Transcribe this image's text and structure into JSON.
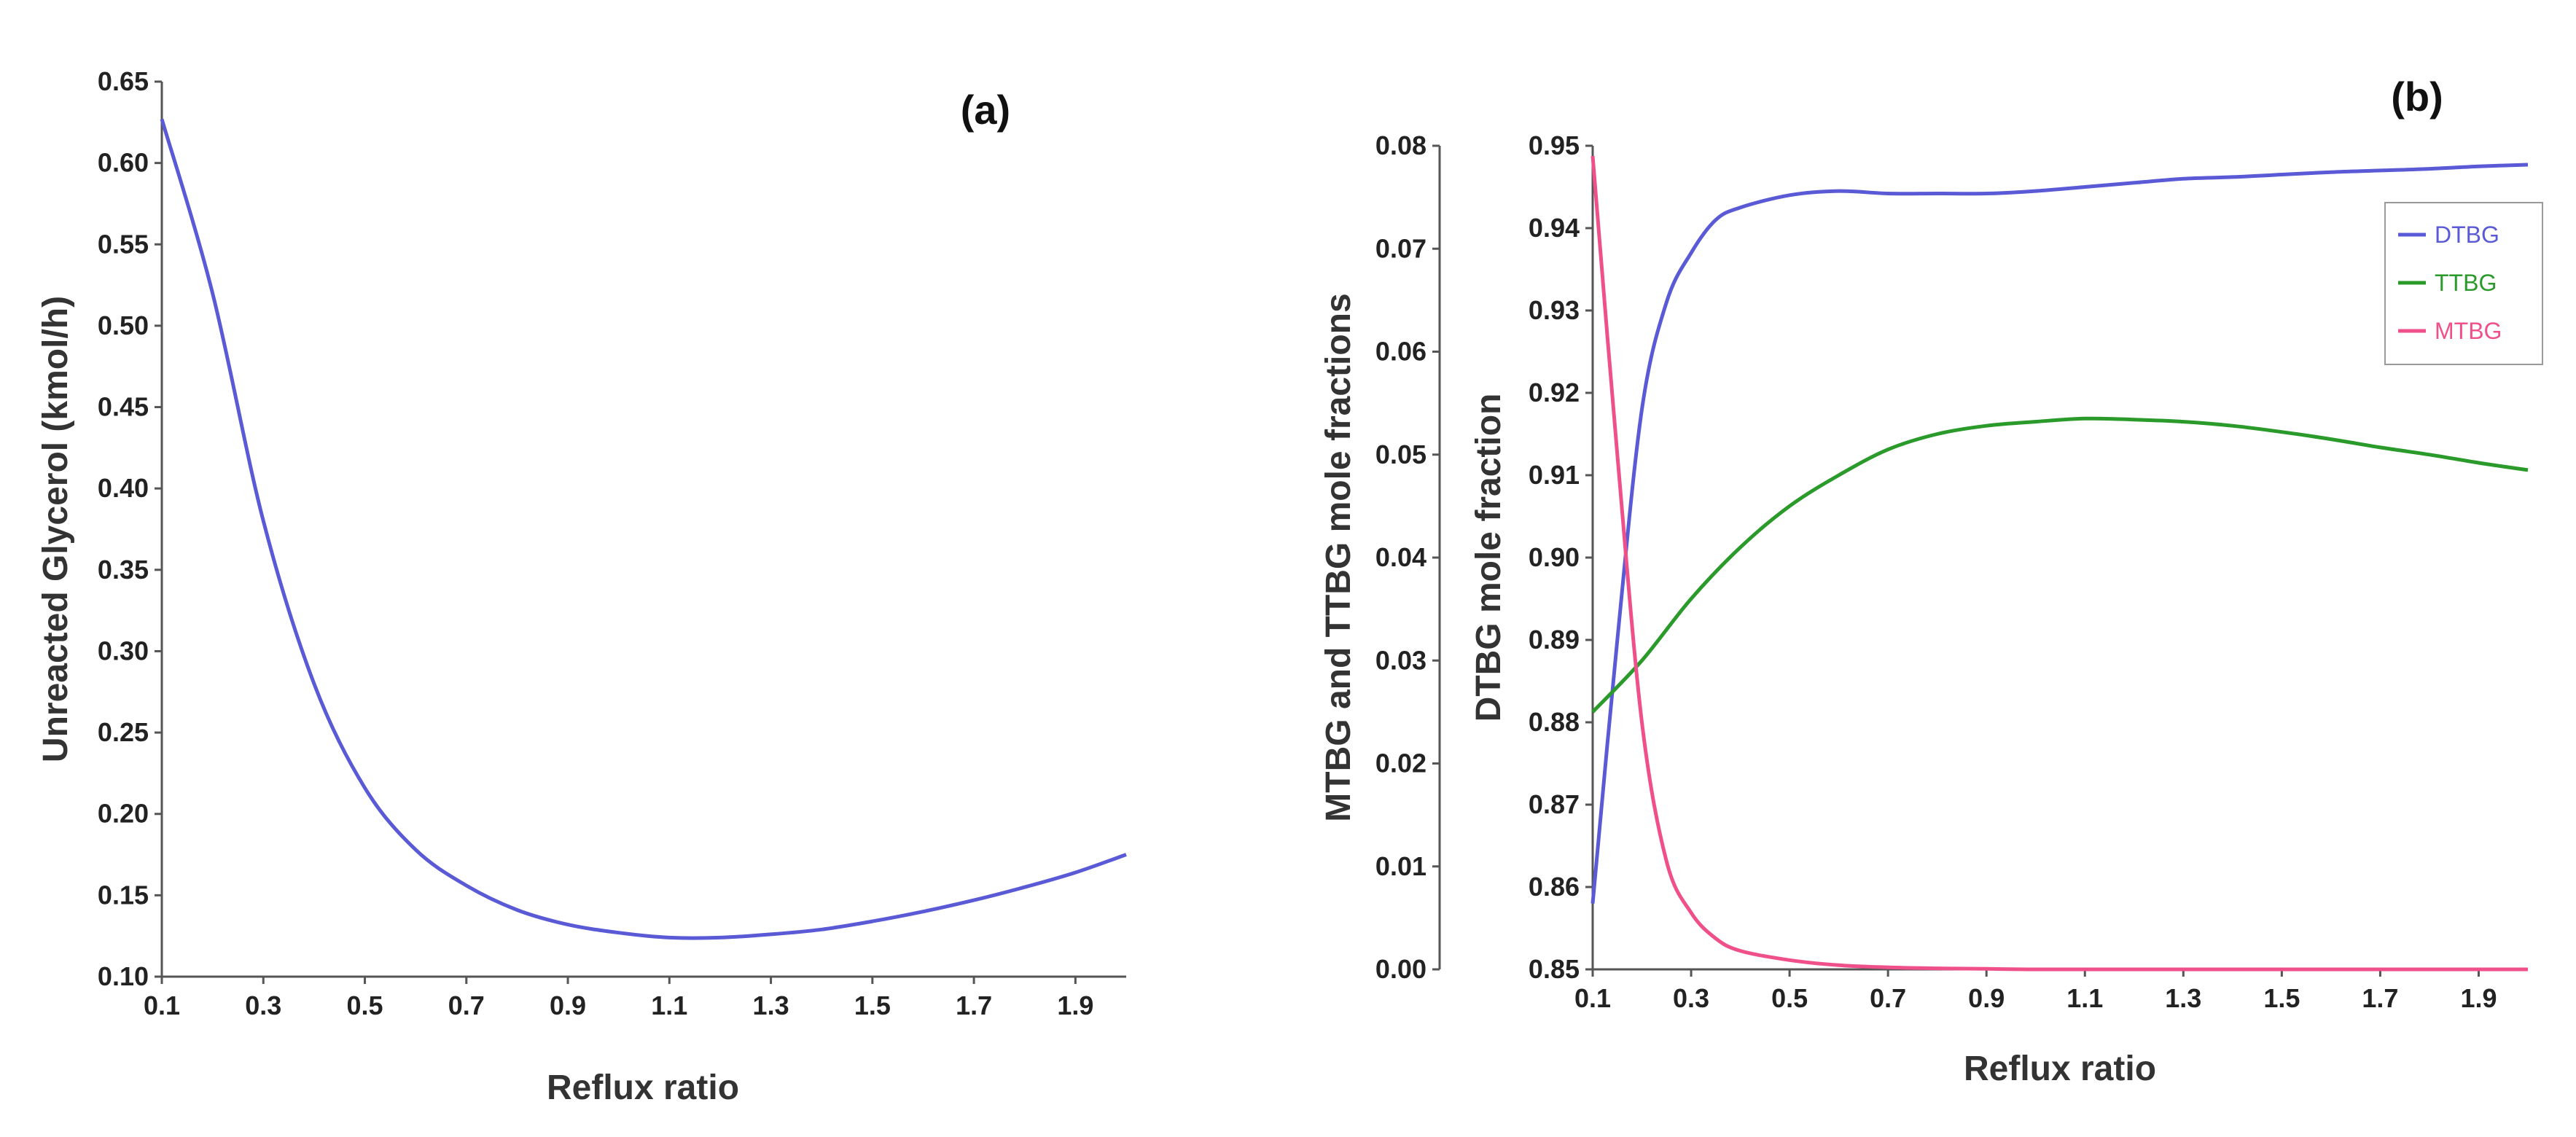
{
  "chart_data": [
    {
      "panel": "(a)",
      "type": "line",
      "xlabel": "Reflux ratio",
      "ylabel": "Unreacted Glycerol (kmol/h)",
      "xlim": [
        0.1,
        2.0
      ],
      "ylim": [
        0.1,
        0.65
      ],
      "xticks": [
        "0.1",
        "0.3",
        "0.5",
        "0.7",
        "0.9",
        "1.1",
        "1.3",
        "1.5",
        "1.7",
        "1.9"
      ],
      "yticks": [
        "0.10",
        "0.15",
        "0.20",
        "0.25",
        "0.30",
        "0.35",
        "0.40",
        "0.45",
        "0.50",
        "0.55",
        "0.60",
        "0.65"
      ],
      "series": [
        {
          "name": "Unreacted Glycerol",
          "color": "#5a5ad6",
          "x": [
            0.1,
            0.2,
            0.3,
            0.4,
            0.5,
            0.6,
            0.7,
            0.8,
            0.9,
            1.0,
            1.1,
            1.2,
            1.3,
            1.4,
            1.5,
            1.6,
            1.7,
            1.8,
            1.9,
            2.0
          ],
          "y": [
            0.627,
            0.52,
            0.38,
            0.28,
            0.216,
            0.178,
            0.156,
            0.141,
            0.132,
            0.127,
            0.124,
            0.124,
            0.126,
            0.129,
            0.134,
            0.14,
            0.147,
            0.155,
            0.164,
            0.175
          ]
        }
      ]
    },
    {
      "panel": "(b)",
      "type": "line",
      "xlabel": "Reflux ratio",
      "ylabel_left": "MTBG and TTBG mole fractions",
      "ylabel_right": "DTBG mole fraction",
      "xlim": [
        0.1,
        2.0
      ],
      "ylim_left": [
        0.0,
        0.08
      ],
      "ylim_right": [
        0.85,
        0.95
      ],
      "xticks": [
        "0.1",
        "0.3",
        "0.5",
        "0.7",
        "0.9",
        "1.1",
        "1.3",
        "1.5",
        "1.7",
        "1.9"
      ],
      "yticks_left": [
        "0.00",
        "0.01",
        "0.02",
        "0.03",
        "0.04",
        "0.05",
        "0.06",
        "0.07",
        "0.08"
      ],
      "yticks_right": [
        "0.85",
        "0.86",
        "0.87",
        "0.88",
        "0.89",
        "0.90",
        "0.91",
        "0.92",
        "0.93",
        "0.94",
        "0.95"
      ],
      "legend_position": "top-right",
      "series": [
        {
          "name": "DTBG",
          "axis": "right",
          "color": "#5a5ad6",
          "x": [
            0.1,
            0.15,
            0.2,
            0.25,
            0.3,
            0.35,
            0.4,
            0.5,
            0.6,
            0.7,
            0.8,
            0.9,
            1.0,
            1.1,
            1.2,
            1.3,
            1.4,
            1.5,
            1.6,
            1.7,
            1.8,
            1.9,
            2.0
          ],
          "y": [
            0.858,
            0.89,
            0.918,
            0.931,
            0.937,
            0.941,
            0.9425,
            0.944,
            0.9445,
            0.9442,
            0.9442,
            0.9442,
            0.9445,
            0.945,
            0.9455,
            0.946,
            0.9462,
            0.9465,
            0.9468,
            0.947,
            0.9472,
            0.9475,
            0.9477
          ]
        },
        {
          "name": "TTBG",
          "axis": "left",
          "color": "#2a9a2a",
          "x": [
            0.1,
            0.2,
            0.3,
            0.4,
            0.5,
            0.6,
            0.7,
            0.8,
            0.9,
            1.0,
            1.1,
            1.2,
            1.3,
            1.4,
            1.5,
            1.6,
            1.7,
            1.8,
            1.9,
            2.0
          ],
          "y": [
            0.025,
            0.03,
            0.036,
            0.041,
            0.045,
            0.048,
            0.0505,
            0.052,
            0.0528,
            0.0532,
            0.0535,
            0.0534,
            0.0532,
            0.0528,
            0.0522,
            0.0515,
            0.0507,
            0.05,
            0.0492,
            0.0485
          ]
        },
        {
          "name": "MTBG",
          "axis": "left",
          "color": "#f0508a",
          "x": [
            0.1,
            0.15,
            0.2,
            0.25,
            0.3,
            0.35,
            0.4,
            0.5,
            0.6,
            0.7,
            0.8,
            0.9,
            1.0,
            1.2,
            1.4,
            1.6,
            1.8,
            2.0
          ],
          "y": [
            0.079,
            0.05,
            0.024,
            0.0105,
            0.0055,
            0.003,
            0.0018,
            0.0009,
            0.0004,
            0.0002,
            0.0001,
            5e-05,
            0.0,
            0.0,
            0.0,
            0.0,
            0.0,
            0.0
          ]
        }
      ]
    }
  ]
}
